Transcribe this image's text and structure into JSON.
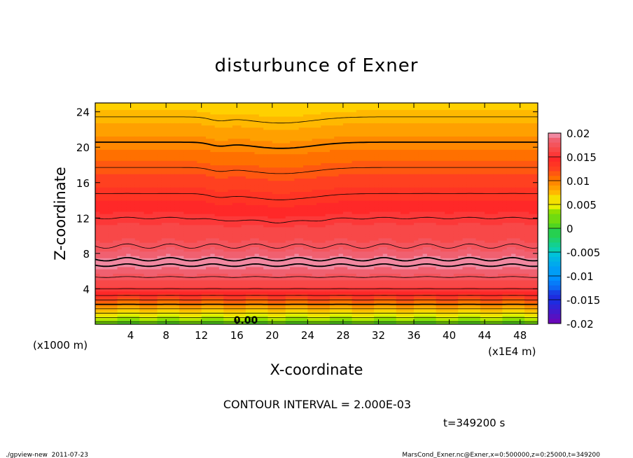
{
  "chart_data": {
    "type": "heatmap",
    "title": "disturbunce of Exner",
    "xlabel": "X-coordinate",
    "ylabel": "Z-coordinate",
    "x_unit_left": "(x1000 m)",
    "x_unit_right": "(x1E4 m)",
    "xlim": [
      0,
      50
    ],
    "ylim": [
      0,
      25
    ],
    "x_ticks": [
      4,
      8,
      12,
      16,
      20,
      24,
      28,
      32,
      36,
      40,
      44,
      48
    ],
    "y_ticks": [
      4,
      8,
      12,
      16,
      20,
      24
    ],
    "contour_interval_label": "CONTOUR INTERVAL = 2.000E-03",
    "contour_label": "0.00",
    "time_label": "t=349200 s",
    "colorbar": {
      "min": -0.02,
      "max": 0.02,
      "tick_labels": [
        "0.02",
        "0.015",
        "0.01",
        "0.005",
        "0",
        "-0.005",
        "-0.01",
        "-0.015",
        "-0.02"
      ],
      "colors": [
        "#f080a0",
        "#ff3030",
        "#ff8000",
        "#e8f000",
        "#30d030",
        "#00d0d0",
        "#00a0ff",
        "#1030f0",
        "#8000c0"
      ]
    },
    "profile": {
      "z": [
        0,
        0.5,
        1,
        1.5,
        2,
        2.5,
        3,
        3.5,
        4,
        5,
        6,
        7,
        8,
        9,
        10,
        11,
        12,
        14,
        16,
        18,
        20,
        22,
        24,
        25
      ],
      "value": [
        0.001,
        0.003,
        0.005,
        0.007,
        0.009,
        0.011,
        0.013,
        0.015,
        0.016,
        0.0175,
        0.019,
        0.0205,
        0.019,
        0.0178,
        0.0172,
        0.0168,
        0.016,
        0.0145,
        0.0132,
        0.0118,
        0.0104,
        0.009,
        0.0076,
        0.007
      ]
    }
  },
  "footer": {
    "left": "./gpview-new  2011-07-23",
    "right": "MarsCond_Exner.nc@Exner,x=0:500000,z=0:25000,t=349200"
  }
}
